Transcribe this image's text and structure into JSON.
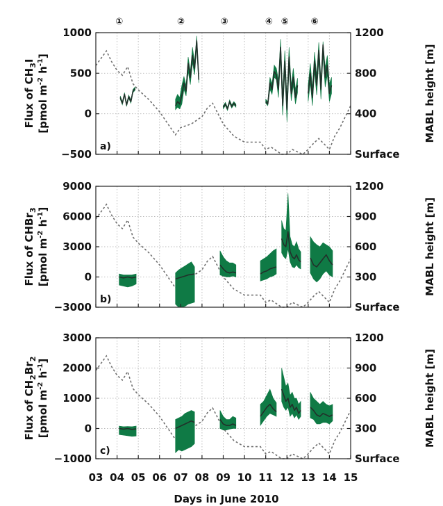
{
  "xlabel": "Days in June 2010",
  "x_ticks": [
    "03",
    "04",
    "05",
    "06",
    "07",
    "08",
    "09",
    "10",
    "11",
    "12",
    "13",
    "14",
    "15"
  ],
  "xlim": [
    3,
    15
  ],
  "markers": [
    {
      "label": "①",
      "day": 4.1
    },
    {
      "label": "②",
      "day": 7.0
    },
    {
      "label": "③",
      "day": 9.05
    },
    {
      "label": "④",
      "day": 11.15
    },
    {
      "label": "⑤",
      "day": 11.9
    },
    {
      "label": "⑥",
      "day": 13.3
    }
  ],
  "colors": {
    "flux_band": "#0f7a45",
    "flux_line": "#22302a",
    "mabl_line": "#6f6f6f"
  },
  "mabl_profile": {
    "name": "MABL height",
    "x": [
      3.0,
      3.5,
      3.75,
      4.0,
      4.25,
      4.5,
      4.75,
      5.0,
      5.5,
      6.0,
      6.75,
      7.0,
      7.5,
      8.0,
      8.25,
      8.5,
      9.0,
      9.5,
      10.0,
      10.5,
      10.75,
      11.0,
      11.25,
      11.5,
      11.75,
      12.0,
      12.25,
      12.5,
      12.75,
      13.0,
      13.25,
      13.5,
      14.0,
      14.25,
      14.5,
      15.0
    ],
    "frac": [
      0.73,
      0.85,
      0.76,
      0.69,
      0.65,
      0.72,
      0.58,
      0.53,
      0.45,
      0.35,
      0.16,
      0.22,
      0.25,
      0.31,
      0.38,
      0.42,
      0.25,
      0.15,
      0.1,
      0.1,
      0.1,
      0.04,
      0.06,
      0.03,
      0.0,
      0.0,
      0.04,
      0.02,
      0.0,
      0.04,
      0.09,
      0.13,
      0.04,
      0.15,
      0.22,
      0.4
    ]
  },
  "chart_data": [
    {
      "type": "area",
      "panel": "a)",
      "ylabel_line1": "Flux of CH",
      "ylabel_sub": "3",
      "ylabel_tail": "I",
      "ylabel_line2": "[pmol m",
      "ylabel_unit_sup1": "-2",
      "ylabel_unit_mid": " h",
      "ylabel_unit_sup2": "-1",
      "ylabel_unit_end": "]",
      "ylim": [
        -500,
        1000
      ],
      "y_ticks": [
        "1000",
        "500",
        "0",
        "−500"
      ],
      "y_tick_values": [
        1000,
        500,
        0,
        -500
      ],
      "right_axis": {
        "label": "MABL height [m]",
        "ticks": [
          "1200",
          "800",
          "400",
          "Surface"
        ],
        "tick_values": [
          1200,
          800,
          400,
          0
        ],
        "ylim": [
          0,
          1200
        ]
      },
      "series": [
        {
          "x": [
            4.15,
            4.25,
            4.35,
            4.45,
            4.55,
            4.65,
            4.75,
            4.85
          ],
          "mean": [
            200,
            130,
            240,
            110,
            210,
            150,
            280,
            310
          ],
          "low": [
            180,
            110,
            220,
            90,
            190,
            130,
            260,
            290
          ],
          "high": [
            220,
            150,
            260,
            130,
            230,
            170,
            300,
            330
          ]
        },
        {
          "x": [
            6.75,
            6.85,
            6.95,
            7.05,
            7.15,
            7.25,
            7.35,
            7.45,
            7.55,
            7.65,
            7.75,
            7.85
          ],
          "mean": [
            100,
            150,
            120,
            230,
            380,
            280,
            620,
            450,
            720,
            560,
            900,
            420
          ],
          "low": [
            50,
            80,
            60,
            120,
            300,
            220,
            520,
            360,
            630,
            480,
            820,
            380
          ],
          "high": [
            180,
            240,
            200,
            350,
            460,
            350,
            700,
            520,
            820,
            640,
            960,
            470
          ]
        },
        {
          "x": [
            9.0,
            9.1,
            9.2,
            9.3,
            9.4,
            9.5,
            9.6
          ],
          "mean": [
            80,
            120,
            60,
            150,
            90,
            130,
            100
          ],
          "low": [
            60,
            100,
            40,
            130,
            70,
            110,
            80
          ],
          "high": [
            100,
            140,
            80,
            170,
            110,
            150,
            120
          ]
        },
        {
          "x": [
            11.0,
            11.1,
            11.2,
            11.3,
            11.4,
            11.5,
            11.6,
            11.7,
            11.8,
            11.9,
            12.0,
            12.1,
            12.2,
            12.3,
            12.4,
            12.5
          ],
          "mean": [
            150,
            120,
            380,
            300,
            520,
            480,
            300,
            820,
            100,
            650,
            50,
            700,
            250,
            450,
            200,
            350
          ],
          "low": [
            130,
            100,
            300,
            240,
            450,
            420,
            200,
            700,
            -20,
            520,
            -100,
            580,
            160,
            350,
            120,
            260
          ],
          "high": [
            180,
            150,
            450,
            370,
            600,
            560,
            420,
            920,
            250,
            780,
            200,
            820,
            350,
            560,
            300,
            440
          ]
        },
        {
          "x": [
            13.0,
            13.1,
            13.2,
            13.3,
            13.4,
            13.5,
            13.6,
            13.7,
            13.8,
            13.9,
            14.0,
            14.1
          ],
          "mean": [
            250,
            500,
            200,
            650,
            350,
            780,
            300,
            850,
            450,
            600,
            250,
            350
          ],
          "low": [
            150,
            380,
            100,
            520,
            230,
            650,
            180,
            720,
            330,
            480,
            150,
            250
          ],
          "high": [
            350,
            620,
            320,
            760,
            470,
            880,
            420,
            890,
            570,
            720,
            370,
            450
          ]
        }
      ]
    },
    {
      "type": "area",
      "panel": "b)",
      "ylabel_line1": "Flux of CHBr",
      "ylabel_sub": "3",
      "ylabel_tail": "",
      "ylabel_line2": "[pmol m",
      "ylabel_unit_sup1": "-2",
      "ylabel_unit_mid": " h",
      "ylabel_unit_sup2": "-1",
      "ylabel_unit_end": "]",
      "ylim": [
        -3000,
        9000
      ],
      "y_ticks": [
        "9000",
        "6000",
        "3000",
        "0",
        "−3000"
      ],
      "y_tick_values": [
        9000,
        6000,
        3000,
        0,
        -3000
      ],
      "right_axis": {
        "label": "MABL height [m]",
        "ticks": [
          "1200",
          "900",
          "600",
          "300",
          "Surface"
        ],
        "tick_values": [
          1200,
          900,
          600,
          300,
          0
        ],
        "ylim": [
          0,
          1200
        ]
      },
      "series": [
        {
          "x": [
            4.1,
            4.3,
            4.5,
            4.7,
            4.9
          ],
          "mean": [
            0,
            -100,
            0,
            -100,
            0
          ],
          "low": [
            -800,
            -900,
            -1000,
            -900,
            -700
          ],
          "high": [
            300,
            200,
            200,
            200,
            300
          ]
        },
        {
          "x": [
            6.75,
            6.9,
            7.05,
            7.2,
            7.35,
            7.5,
            7.65
          ],
          "mean": [
            -200,
            -100,
            0,
            100,
            200,
            250,
            300
          ],
          "low": [
            -2700,
            -3000,
            -3000,
            -2900,
            -2700,
            -2600,
            -2500
          ],
          "high": [
            400,
            700,
            900,
            1100,
            1300,
            1500,
            1000
          ]
        },
        {
          "x": [
            8.85,
            9.0,
            9.15,
            9.3,
            9.45,
            9.6
          ],
          "mean": [
            1200,
            800,
            500,
            400,
            500,
            400
          ],
          "low": [
            200,
            100,
            0,
            0,
            100,
            0
          ],
          "high": [
            2600,
            2000,
            1600,
            1400,
            1400,
            1200
          ]
        },
        {
          "x": [
            10.75,
            10.9,
            11.05,
            11.2,
            11.35,
            11.5
          ],
          "mean": [
            300,
            500,
            600,
            800,
            900,
            1000
          ],
          "low": [
            -400,
            -300,
            -200,
            0,
            100,
            300
          ],
          "high": [
            1600,
            1800,
            2000,
            2300,
            2600,
            2800
          ]
        },
        {
          "x": [
            11.75,
            11.85,
            11.95,
            12.05,
            12.15,
            12.25,
            12.35,
            12.45,
            12.55,
            12.65
          ],
          "mean": [
            3800,
            3200,
            3000,
            4500,
            2500,
            2000,
            1800,
            2200,
            1700,
            1500
          ],
          "low": [
            2400,
            2000,
            1800,
            2800,
            1500,
            1000,
            900,
            1200,
            900,
            800
          ],
          "high": [
            5600,
            4800,
            4600,
            8300,
            4000,
            3200,
            3000,
            3500,
            2800,
            2500
          ]
        },
        {
          "x": [
            13.1,
            13.25,
            13.4,
            13.55,
            13.7,
            13.85,
            14.0,
            14.15
          ],
          "mean": [
            1900,
            1200,
            1000,
            1400,
            1800,
            2200,
            1600,
            1200
          ],
          "low": [
            400,
            -200,
            -500,
            -200,
            300,
            600,
            200,
            0
          ],
          "high": [
            4000,
            3500,
            3200,
            3000,
            3400,
            3200,
            3000,
            2600
          ]
        }
      ]
    },
    {
      "type": "area",
      "panel": "c)",
      "ylabel_line1": "Flux of CH",
      "ylabel_sub": "2",
      "ylabel_tail": "Br",
      "ylabel_sub2": "2",
      "ylabel_line2": "[pmol m",
      "ylabel_unit_sup1": "-2",
      "ylabel_unit_mid": " h",
      "ylabel_unit_sup2": "-1",
      "ylabel_unit_end": "]",
      "ylim": [
        -1000,
        3000
      ],
      "y_ticks": [
        "3000",
        "2000",
        "1000",
        "0",
        "−1000"
      ],
      "y_tick_values": [
        3000,
        2000,
        1000,
        0,
        -1000
      ],
      "right_axis": {
        "label": "MABL height [m]",
        "ticks": [
          "1200",
          "900",
          "600",
          "300",
          "Surface"
        ],
        "tick_values": [
          1200,
          900,
          600,
          300,
          0
        ],
        "ylim": [
          0,
          1200
        ]
      },
      "series": [
        {
          "x": [
            4.1,
            4.3,
            4.5,
            4.7,
            4.9
          ],
          "mean": [
            0,
            -20,
            0,
            -30,
            -10
          ],
          "low": [
            -200,
            -220,
            -240,
            -260,
            -250
          ],
          "high": [
            80,
            60,
            70,
            60,
            80
          ]
        },
        {
          "x": [
            6.75,
            6.9,
            7.05,
            7.2,
            7.35,
            7.5,
            7.65
          ],
          "mean": [
            0,
            50,
            100,
            150,
            200,
            250,
            200
          ],
          "low": [
            -800,
            -700,
            -750,
            -700,
            -650,
            -600,
            -500
          ],
          "high": [
            300,
            350,
            400,
            500,
            550,
            600,
            550
          ]
        },
        {
          "x": [
            8.85,
            9.0,
            9.15,
            9.3,
            9.45,
            9.6
          ],
          "mean": [
            300,
            150,
            100,
            100,
            150,
            100
          ],
          "low": [
            0,
            -50,
            -50,
            -20,
            0,
            0
          ],
          "high": [
            600,
            400,
            300,
            300,
            400,
            350
          ]
        },
        {
          "x": [
            10.75,
            10.9,
            11.05,
            11.2,
            11.35,
            11.5
          ],
          "mean": [
            400,
            550,
            700,
            800,
            650,
            550
          ],
          "low": [
            100,
            250,
            400,
            500,
            450,
            400
          ],
          "high": [
            800,
            900,
            1100,
            1300,
            1000,
            850
          ]
        },
        {
          "x": [
            11.75,
            11.85,
            11.95,
            12.05,
            12.15,
            12.25,
            12.35,
            12.45,
            12.55,
            12.65
          ],
          "mean": [
            1300,
            1100,
            900,
            1000,
            700,
            800,
            600,
            700,
            500,
            600
          ],
          "low": [
            900,
            700,
            600,
            700,
            400,
            500,
            350,
            450,
            300,
            400
          ],
          "high": [
            2000,
            1700,
            1400,
            1500,
            1100,
            1200,
            1000,
            1000,
            800,
            900
          ]
        },
        {
          "x": [
            13.1,
            13.25,
            13.4,
            13.55,
            13.7,
            13.85,
            14.0,
            14.15
          ],
          "mean": [
            700,
            600,
            450,
            400,
            500,
            450,
            400,
            450
          ],
          "low": [
            350,
            300,
            150,
            150,
            200,
            200,
            150,
            250
          ],
          "high": [
            1200,
            1000,
            900,
            800,
            900,
            800,
            750,
            800
          ]
        }
      ]
    }
  ]
}
